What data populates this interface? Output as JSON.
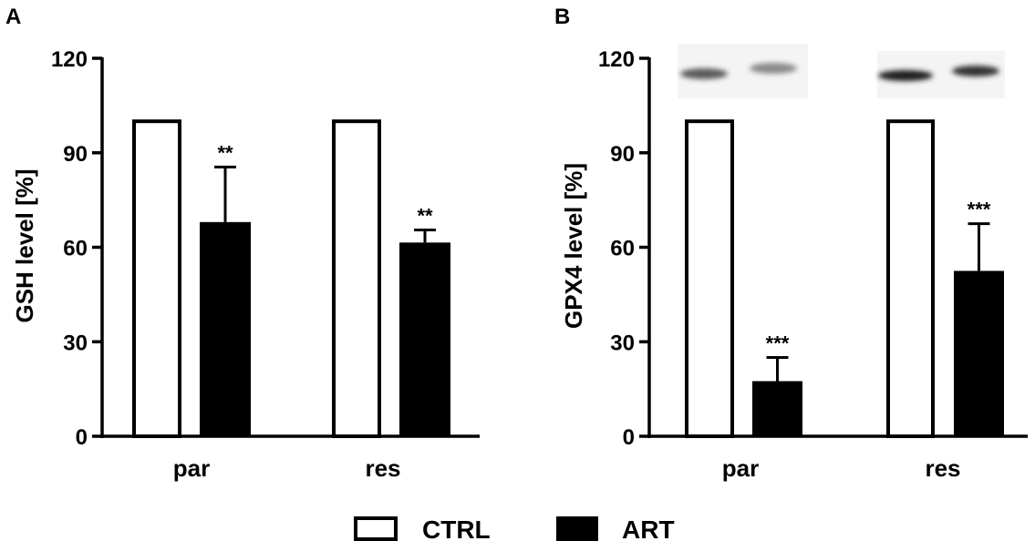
{
  "legend": {
    "items": [
      {
        "label": "CTRL",
        "fill": "#ffffff"
      },
      {
        "label": "ART",
        "fill": "#000000"
      }
    ]
  },
  "chart_data": [
    {
      "type": "bar",
      "panel_label": "A",
      "ylabel": "GSH level [%]",
      "xlabel": "",
      "categories": [
        "par",
        "res"
      ],
      "ylim": [
        0,
        120
      ],
      "yticks": [
        0,
        30,
        60,
        90,
        120
      ],
      "series": [
        {
          "name": "CTRL",
          "values": [
            100,
            100
          ],
          "errors": [
            0,
            0
          ],
          "fill": "#ffffff",
          "significance": [
            "",
            ""
          ]
        },
        {
          "name": "ART",
          "values": [
            68,
            61.5
          ],
          "errors": [
            17.5,
            4
          ],
          "fill": "#000000",
          "significance": [
            "**",
            "**"
          ]
        }
      ]
    },
    {
      "type": "bar",
      "panel_label": "B",
      "ylabel": "GPX4 level [%]",
      "xlabel": "",
      "categories": [
        "par",
        "res"
      ],
      "ylim": [
        0,
        120
      ],
      "yticks": [
        0,
        30,
        60,
        90,
        120
      ],
      "series": [
        {
          "name": "CTRL",
          "values": [
            100,
            100
          ],
          "errors": [
            0,
            0
          ],
          "fill": "#ffffff",
          "significance": [
            "",
            ""
          ]
        },
        {
          "name": "ART",
          "values": [
            17.5,
            52.5
          ],
          "errors": [
            7.5,
            15
          ],
          "fill": "#000000",
          "significance": [
            "***",
            "***"
          ]
        }
      ],
      "blot_inset": true
    }
  ]
}
